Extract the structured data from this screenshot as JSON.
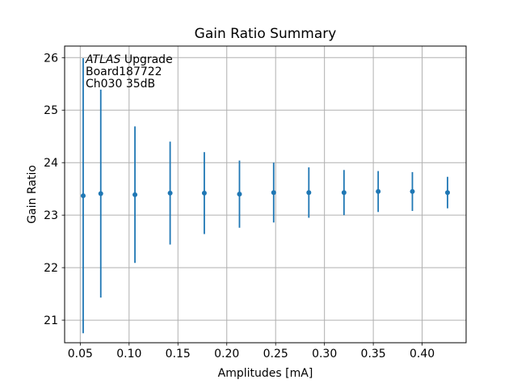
{
  "chart_data": {
    "type": "scatter",
    "title": "Gain Ratio Summary",
    "xlabel": "Amplitudes [mA]",
    "ylabel": "Gain Ratio",
    "xlim": [
      0.034,
      0.445
    ],
    "ylim": [
      20.57,
      26.22
    ],
    "xticks": [
      0.05,
      0.1,
      0.15,
      0.2,
      0.25,
      0.3,
      0.35,
      0.4
    ],
    "yticks": [
      21,
      22,
      23,
      24,
      25,
      26
    ],
    "grid": true,
    "legend_position": "none",
    "series": [
      {
        "name": "Gain Ratio",
        "color": "#1f77b4",
        "marker": "circle",
        "x": [
          0.053,
          0.071,
          0.106,
          0.142,
          0.177,
          0.213,
          0.248,
          0.284,
          0.32,
          0.355,
          0.39,
          0.426
        ],
        "y": [
          23.37,
          23.41,
          23.39,
          23.42,
          23.42,
          23.4,
          23.43,
          23.43,
          23.43,
          23.45,
          23.45,
          23.43
        ],
        "yerr": [
          2.62,
          1.98,
          1.3,
          0.98,
          0.78,
          0.64,
          0.57,
          0.48,
          0.43,
          0.39,
          0.37,
          0.3
        ]
      }
    ],
    "annotation": {
      "lines": [
        {
          "segments": [
            {
              "text": "ATLAS",
              "italic": true
            },
            {
              "text": " Upgrade",
              "italic": false
            }
          ]
        },
        {
          "segments": [
            {
              "text": " Board187722",
              "italic": false
            }
          ]
        },
        {
          "segments": [
            {
              "text": " Ch030 35dB",
              "italic": false
            }
          ]
        }
      ]
    },
    "colors": {
      "background": "#ffffff",
      "grid": "#b0b0b0",
      "spine": "#000000",
      "text": "#000000",
      "accent": "#1f77b4"
    }
  }
}
